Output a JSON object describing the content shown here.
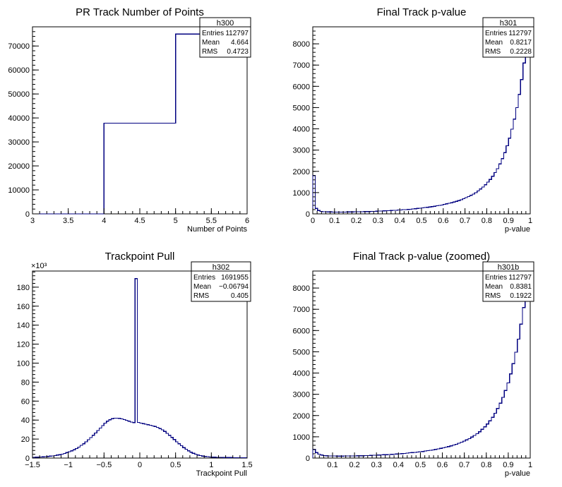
{
  "chart_data": [
    {
      "type": "histogram",
      "title": "PR Track Number of Points",
      "xlabel": "Number of Points",
      "ylabel": "",
      "xlim": [
        3,
        6
      ],
      "ylim": [
        0,
        78000
      ],
      "x_ticks": [
        3,
        3.5,
        4,
        4.5,
        5,
        5.5,
        6
      ],
      "x_tick_labels": [
        "3",
        "3.5",
        "4",
        "4.5",
        "5",
        "5.5",
        "6"
      ],
      "y_ticks": [
        0,
        10000,
        20000,
        30000,
        40000,
        50000,
        60000,
        70000
      ],
      "y_tick_labels": [
        "0",
        "10000",
        "20000",
        "30000",
        "40000",
        "50000",
        "60000",
        "70000"
      ],
      "y_exponent": "",
      "bin_edges": [
        3,
        4,
        5,
        6
      ],
      "counts": [
        0,
        37800,
        75000
      ],
      "stats": {
        "name": "h300",
        "rows": [
          [
            "Entries",
            "112797"
          ],
          [
            "Mean",
            "4.664"
          ],
          [
            "RMS",
            "0.4723"
          ]
        ]
      }
    },
    {
      "type": "histogram",
      "title": "Final Track p-value",
      "xlabel": "p-value",
      "ylabel": "",
      "xlim": [
        0,
        1
      ],
      "ylim": [
        0,
        8800
      ],
      "x_ticks": [
        0,
        0.1,
        0.2,
        0.3,
        0.4,
        0.5,
        0.6,
        0.7,
        0.8,
        0.9,
        1
      ],
      "x_tick_labels": [
        "0",
        "0.1",
        "0.2",
        "0.3",
        "0.4",
        "0.5",
        "0.6",
        "0.7",
        "0.8",
        "0.9",
        "1"
      ],
      "y_ticks": [
        0,
        1000,
        2000,
        3000,
        4000,
        5000,
        6000,
        7000,
        8000
      ],
      "y_tick_labels": [
        "0",
        "1000",
        "2000",
        "3000",
        "4000",
        "5000",
        "6000",
        "7000",
        "8000"
      ],
      "y_exponent": "",
      "bin_edges_range": [
        0,
        1
      ],
      "counts": [
        1800,
        260,
        160,
        120,
        100,
        95,
        90,
        90,
        85,
        85,
        85,
        85,
        85,
        85,
        90,
        90,
        90,
        95,
        95,
        100,
        100,
        105,
        110,
        110,
        115,
        120,
        125,
        130,
        135,
        140,
        145,
        150,
        160,
        165,
        170,
        180,
        185,
        195,
        200,
        210,
        220,
        230,
        240,
        255,
        265,
        280,
        295,
        310,
        325,
        340,
        360,
        380,
        400,
        420,
        445,
        470,
        495,
        525,
        555,
        590,
        625,
        665,
        710,
        760,
        810,
        870,
        930,
        1000,
        1080,
        1170,
        1260,
        1370,
        1490,
        1620,
        1770,
        1940,
        2130,
        2350,
        2600,
        2880,
        3200,
        3560,
        3980,
        4460,
        5000,
        5620,
        6320,
        7100,
        7980,
        8900
      ],
      "stats": {
        "name": "h301",
        "rows": [
          [
            "Entries",
            "112797"
          ],
          [
            "Mean",
            "0.8217"
          ],
          [
            "RMS",
            "0.2228"
          ]
        ]
      }
    },
    {
      "type": "histogram",
      "title": "Trackpoint Pull",
      "xlabel": "Trackpoint Pull",
      "ylabel": "",
      "xlim": [
        -1.5,
        1.5
      ],
      "ylim": [
        0,
        197000
      ],
      "x_ticks": [
        -1.5,
        -1,
        -0.5,
        0,
        0.5,
        1,
        1.5
      ],
      "x_tick_labels": [
        "−1.5",
        "−1",
        "−0.5",
        "0",
        "0.5",
        "1",
        "1.5"
      ],
      "y_ticks": [
        0,
        20000,
        40000,
        60000,
        80000,
        100000,
        120000,
        140000,
        160000,
        180000
      ],
      "y_tick_labels": [
        "0",
        "20",
        "40",
        "60",
        "80",
        "100",
        "120",
        "140",
        "160",
        "180"
      ],
      "y_exponent": "×10³",
      "bin_edges_range": [
        -1.5,
        1.5
      ],
      "counts": [
        800,
        900,
        1000,
        1100,
        1300,
        1500,
        1700,
        2000,
        2300,
        2700,
        3100,
        3600,
        4200,
        4900,
        5700,
        6600,
        7600,
        8800,
        10100,
        11600,
        13300,
        15100,
        17100,
        19300,
        21600,
        24000,
        26500,
        29100,
        31700,
        34300,
        36700,
        38800,
        40400,
        41500,
        42000,
        42100,
        41800,
        41300,
        40600,
        39800,
        38900,
        38000,
        37300,
        189000,
        37600,
        36900,
        36300,
        35700,
        35100,
        34500,
        33900,
        33200,
        32300,
        31100,
        29700,
        28000,
        26100,
        24000,
        21800,
        19500,
        17200,
        15000,
        12900,
        11000,
        9200,
        7600,
        6200,
        5000,
        4000,
        3200,
        2600,
        2100,
        1700,
        1400,
        1200,
        1000,
        900,
        800,
        700,
        650,
        600,
        560,
        520,
        490,
        460,
        440,
        420,
        400,
        380,
        360
      ],
      "stats": {
        "name": "h302",
        "rows": [
          [
            "Entries",
            "1691955"
          ],
          [
            "Mean",
            "−0.06794"
          ],
          [
            "RMS",
            "0.405"
          ]
        ]
      }
    },
    {
      "type": "histogram",
      "title": "Final Track p-value (zoomed)",
      "xlabel": "p-value",
      "ylabel": "",
      "xlim": [
        0.01,
        1
      ],
      "ylim": [
        0,
        8800
      ],
      "x_ticks": [
        0.1,
        0.2,
        0.3,
        0.4,
        0.5,
        0.6,
        0.7,
        0.8,
        0.9,
        1
      ],
      "x_tick_labels": [
        "0.1",
        "0.2",
        "0.3",
        "0.4",
        "0.5",
        "0.6",
        "0.7",
        "0.8",
        "0.9",
        "1"
      ],
      "y_ticks": [
        0,
        1000,
        2000,
        3000,
        4000,
        5000,
        6000,
        7000,
        8000
      ],
      "y_tick_labels": [
        "0",
        "1000",
        "2000",
        "3000",
        "4000",
        "5000",
        "6000",
        "7000",
        "8000"
      ],
      "y_exponent": "",
      "bin_edges_range": [
        0.01,
        1
      ],
      "counts": [
        420,
        260,
        180,
        140,
        120,
        110,
        100,
        95,
        95,
        90,
        90,
        90,
        95,
        95,
        95,
        100,
        100,
        105,
        110,
        110,
        115,
        120,
        125,
        130,
        135,
        140,
        150,
        155,
        160,
        170,
        175,
        185,
        190,
        200,
        210,
        220,
        230,
        245,
        255,
        270,
        280,
        295,
        310,
        330,
        345,
        365,
        385,
        405,
        430,
        455,
        480,
        510,
        540,
        575,
        610,
        650,
        695,
        745,
        795,
        855,
        915,
        985,
        1060,
        1150,
        1240,
        1350,
        1470,
        1600,
        1750,
        1920,
        2110,
        2330,
        2580,
        2860,
        3180,
        3540,
        3960,
        4440,
        4980,
        5600,
        6300,
        7080,
        7960,
        8900
      ],
      "stats": {
        "name": "h301b",
        "rows": [
          [
            "Entries",
            "112797"
          ],
          [
            "Mean",
            "0.8381"
          ],
          [
            "RMS",
            "0.1922"
          ]
        ]
      }
    }
  ]
}
